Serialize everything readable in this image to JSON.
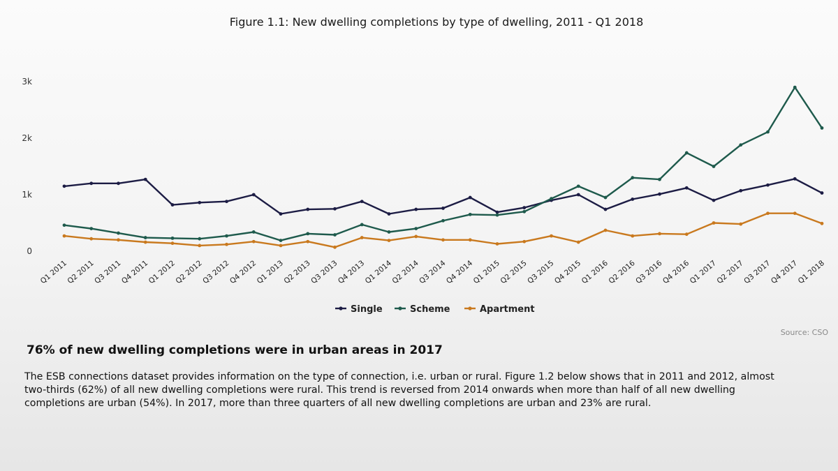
{
  "chart_data": {
    "type": "line",
    "title": "Figure 1.1: New dwelling completions by type of dwelling, 2011 - Q1 2018",
    "xlabel": "",
    "ylabel": "",
    "ylim": [
      0,
      3000
    ],
    "yticks": [
      {
        "value": 0,
        "label": "0"
      },
      {
        "value": 1000,
        "label": "1k"
      },
      {
        "value": 2000,
        "label": "2k"
      },
      {
        "value": 3000,
        "label": "3k"
      }
    ],
    "categories": [
      "Q1 2011",
      "Q2 2011",
      "Q3 2011",
      "Q4 2011",
      "Q1 2012",
      "Q2 2012",
      "Q3 2012",
      "Q4 2012",
      "Q1 2013",
      "Q2 2013",
      "Q3 2013",
      "Q4 2013",
      "Q1 2014",
      "Q2 2014",
      "Q3 2014",
      "Q4 2014",
      "Q1 2015",
      "Q2 2015",
      "Q3 2015",
      "Q4 2015",
      "Q1 2016",
      "Q2 2016",
      "Q3 2016",
      "Q4 2016",
      "Q1 2017",
      "Q2 2017",
      "Q3 2017",
      "Q4 2017",
      "Q1 2018"
    ],
    "series": [
      {
        "name": "Single",
        "color": "#1c1c44",
        "values": [
          1150,
          1200,
          1200,
          1270,
          820,
          860,
          880,
          1000,
          660,
          740,
          750,
          880,
          660,
          740,
          760,
          950,
          690,
          770,
          900,
          1000,
          740,
          920,
          1010,
          1120,
          900,
          1070,
          1170,
          1280,
          1030
        ]
      },
      {
        "name": "Scheme",
        "color": "#1e5a4c",
        "values": [
          460,
          400,
          320,
          240,
          230,
          220,
          270,
          340,
          190,
          310,
          290,
          470,
          340,
          400,
          540,
          650,
          640,
          700,
          930,
          1150,
          950,
          1300,
          1270,
          1740,
          1500,
          1880,
          2110,
          2900,
          2180
        ]
      },
      {
        "name": "Apartment",
        "color": "#c9791e",
        "values": [
          270,
          220,
          200,
          160,
          140,
          100,
          120,
          170,
          100,
          170,
          70,
          240,
          190,
          260,
          200,
          200,
          130,
          170,
          270,
          160,
          370,
          270,
          310,
          300,
          500,
          480,
          670,
          670,
          490
        ]
      }
    ],
    "legend_position": "bottom",
    "source": "Source: CSO"
  },
  "text": {
    "headline": "76% of new dwelling completions were in urban areas in 2017",
    "lines": [
      "The ESB connections dataset provides information on the type of connection, i.e. urban or rural. Figure 1.2 below shows that in 2011 and 2012, almost",
      "two-thirds (62%) of all new dwelling completions were rural. This trend is reversed from 2014 onwards when more than half of all new dwelling",
      "completions are urban (54%). In 2017, more than three quarters of all new dwelling completions are urban and 23% are rural."
    ]
  }
}
